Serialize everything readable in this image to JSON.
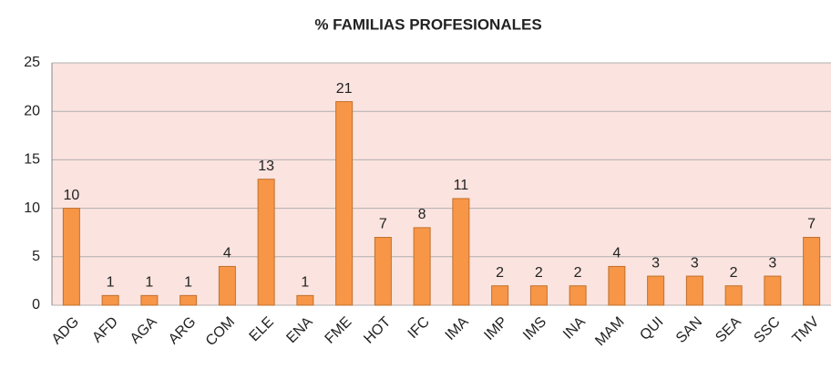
{
  "chart_data": {
    "type": "bar",
    "title": "% FAMILIAS PROFESIONALES",
    "categories": [
      "ADG",
      "AFD",
      "AGA",
      "ARG",
      "COM",
      "ELE",
      "ENA",
      "FME",
      "HOT",
      "IFC",
      "IMA",
      "IMP",
      "IMS",
      "INA",
      "MAM",
      "QUI",
      "SAN",
      "SEA",
      "SSC",
      "TMV"
    ],
    "values": [
      10,
      1,
      1,
      1,
      4,
      13,
      1,
      21,
      7,
      8,
      11,
      2,
      2,
      2,
      4,
      3,
      3,
      2,
      3,
      7
    ],
    "color": "#f79646",
    "ylim": [
      0,
      25
    ],
    "yticks": [
      0,
      5,
      10,
      15,
      20,
      25
    ],
    "grid": true
  }
}
